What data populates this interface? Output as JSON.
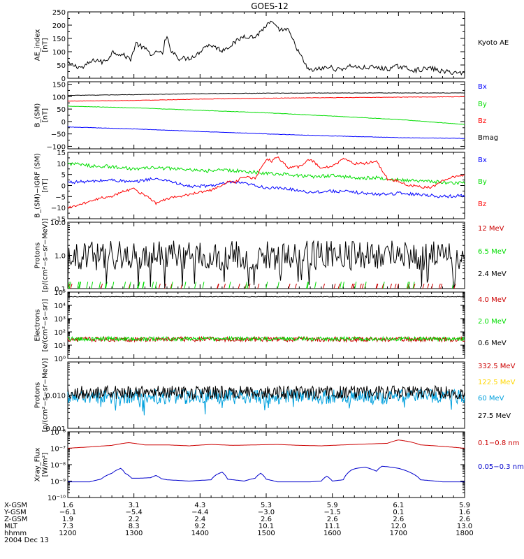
{
  "title": "GOES-12",
  "chart_data": [
    {
      "type": "line",
      "panel": "ae",
      "ylabel": "AE_index\n[nT]",
      "ylim": [
        0,
        250
      ],
      "yticks": [
        {
          "v": 0,
          "t": "0"
        },
        {
          "v": 50,
          "t": "50"
        },
        {
          "v": 100,
          "t": "100"
        },
        {
          "v": 150,
          "t": "150"
        },
        {
          "v": 200,
          "t": "200"
        },
        {
          "v": 250,
          "t": "250"
        }
      ],
      "series": [
        {
          "name": "Kyoto AE",
          "color": "#000000",
          "style": "noise",
          "noise": 9,
          "x": [
            0,
            8,
            14,
            20,
            26,
            31,
            36,
            41,
            50,
            57,
            62,
            70,
            78,
            82,
            86,
            88,
            90,
            94,
            101,
            110,
            118,
            124,
            130,
            140,
            150,
            160,
            170,
            180,
            185,
            190,
            200,
            210,
            214,
            219,
            228,
            238,
            245,
            252,
            258,
            265,
            275,
            290,
            300,
            315,
            330,
            340,
            352,
            360
          ],
          "y": [
            55,
            45,
            40,
            60,
            70,
            60,
            72,
            100,
            88,
            72,
            132,
            110,
            85,
            105,
            88,
            138,
            150,
            105,
            75,
            75,
            92,
            120,
            125,
            105,
            130,
            160,
            155,
            198,
            212,
            185,
            180,
            95,
            62,
            28,
            35,
            42,
            32,
            40,
            48,
            38,
            42,
            35,
            45,
            30,
            38,
            25,
            22,
            18
          ]
        }
      ]
    },
    {
      "type": "line",
      "panel": "b",
      "ylabel": "B_(SM)\n[nT]",
      "ylim": [
        -110,
        160
      ],
      "yticks": [
        {
          "v": -100,
          "t": "−100"
        },
        {
          "v": -50,
          "t": "−50"
        },
        {
          "v": 0,
          "t": "0"
        },
        {
          "v": 50,
          "t": "50"
        },
        {
          "v": 100,
          "t": "100"
        },
        {
          "v": 150,
          "t": "150"
        }
      ],
      "series": [
        {
          "name": "Bx",
          "color": "#0000ff",
          "style": "smooth",
          "noise": 0.8,
          "x": [
            0,
            60,
            120,
            180,
            240,
            300,
            360
          ],
          "y": [
            -22,
            -30,
            -40,
            -50,
            -58,
            -65,
            -68
          ]
        },
        {
          "name": "By",
          "color": "#00dd00",
          "style": "smooth",
          "noise": 0.8,
          "x": [
            0,
            60,
            120,
            180,
            240,
            300,
            360
          ],
          "y": [
            62,
            55,
            45,
            35,
            22,
            8,
            -12
          ]
        },
        {
          "name": "Bz",
          "color": "#ff0000",
          "style": "smooth",
          "noise": 0.8,
          "x": [
            0,
            60,
            120,
            180,
            240,
            300,
            360
          ],
          "y": [
            82,
            85,
            90,
            94,
            96,
            98,
            100
          ]
        },
        {
          "name": "Bmag",
          "color": "#000000",
          "style": "smooth",
          "noise": 0.8,
          "x": [
            0,
            60,
            120,
            180,
            240,
            300,
            360
          ],
          "y": [
            105,
            108,
            112,
            114,
            115,
            115,
            115
          ]
        }
      ],
      "legend_colors": [
        "#0000ff",
        "#00dd00",
        "#ff0000",
        "#000000"
      ]
    },
    {
      "type": "line",
      "panel": "db",
      "ylabel": "B_(SM)−IGRF (SM)\n[nT]",
      "ylim": [
        -15,
        15
      ],
      "yticks": [
        {
          "v": -15,
          "t": "−15"
        },
        {
          "v": -10,
          "t": "−10"
        },
        {
          "v": -5,
          "t": "−5"
        },
        {
          "v": 0,
          "t": "0"
        },
        {
          "v": 5,
          "t": "5"
        },
        {
          "v": 10,
          "t": "10"
        },
        {
          "v": 15,
          "t": "15"
        }
      ],
      "series": [
        {
          "name": "Bx",
          "color": "#0000ff",
          "style": "noise",
          "noise": 0.7,
          "x": [
            0,
            20,
            40,
            60,
            75,
            90,
            105,
            115,
            130,
            150,
            165,
            180,
            200,
            220,
            240,
            260,
            280,
            300,
            320,
            340,
            360
          ],
          "y": [
            1.5,
            1.8,
            2.5,
            1.5,
            3,
            2.5,
            0,
            -0.5,
            0,
            1.5,
            0.5,
            -1,
            -1.5,
            -3,
            -2.5,
            -3,
            -4,
            -3.5,
            -4,
            -5,
            -4.5
          ]
        },
        {
          "name": "By",
          "color": "#00dd00",
          "style": "noise",
          "noise": 0.8,
          "x": [
            0,
            20,
            40,
            60,
            80,
            100,
            120,
            140,
            160,
            180,
            200,
            220,
            240,
            260,
            280,
            300,
            320,
            340,
            360
          ],
          "y": [
            10,
            9,
            8.5,
            7.5,
            8,
            7.5,
            6.5,
            7,
            6.5,
            5.5,
            5,
            4,
            4.5,
            3.5,
            3.5,
            2.5,
            2,
            1.5,
            1
          ]
        },
        {
          "name": "Bz",
          "color": "#ff0000",
          "style": "noise",
          "noise": 0.6,
          "x": [
            0,
            10,
            20,
            30,
            40,
            50,
            60,
            70,
            80,
            90,
            100,
            110,
            120,
            130,
            140,
            145,
            150,
            160,
            170,
            175,
            180,
            185,
            190,
            200,
            210,
            220,
            230,
            240,
            250,
            260,
            270,
            280,
            285,
            290,
            300,
            310,
            320,
            330,
            340,
            350,
            360
          ],
          "y": [
            -10,
            -9,
            -7,
            -5.5,
            -5,
            -2.5,
            -1.5,
            -4.5,
            -8,
            -6,
            -5,
            -4,
            -3,
            -2,
            0,
            2,
            1,
            4,
            3,
            8,
            12,
            11,
            13,
            8,
            8.5,
            12,
            8,
            8.5,
            12,
            10,
            10,
            11,
            7,
            3,
            2,
            0,
            -0.5,
            -1,
            2,
            4,
            5
          ]
        }
      ],
      "legend_colors": [
        "#0000ff",
        "#00dd00",
        "#ff0000"
      ]
    },
    {
      "type": "line",
      "panel": "protons_low",
      "ylabel": "Protons\n[p/(cm²−s−sr−MeV)]",
      "log": true,
      "ylim": [
        0.1,
        10
      ],
      "yticks": [
        {
          "v": 0.1,
          "t": "0.1"
        },
        {
          "v": 1,
          "t": "1.0"
        },
        {
          "v": 10,
          "t": "10.0"
        }
      ],
      "series": [
        {
          "name": "12 MeV",
          "color": "#cc0000",
          "style": "sparse",
          "level": 0.1,
          "top": 0.14
        },
        {
          "name": "6.5 MeV",
          "color": "#00dd00",
          "style": "sparse",
          "level": 0.1,
          "top": 0.16
        },
        {
          "name": "2.4 MeV",
          "color": "#000000",
          "style": "spiky",
          "center": 1.0,
          "spread": 0.45,
          "dips": true
        }
      ],
      "legend_colors": [
        "#cc0000",
        "#00dd00",
        "#000000"
      ]
    },
    {
      "type": "line",
      "panel": "electrons",
      "ylabel": "Electrons\n[e/(cm²−s−sr)]",
      "log": true,
      "ylim": [
        1,
        100000
      ],
      "yticks": [
        {
          "v": 1,
          "t": "10⁰"
        },
        {
          "v": 10,
          "t": "10¹"
        },
        {
          "v": 100,
          "t": "10²"
        },
        {
          "v": 1000,
          "t": "10³"
        },
        {
          "v": 10000,
          "t": "10⁴"
        },
        {
          "v": 100000,
          "t": "10⁵"
        }
      ],
      "series": [
        {
          "name": "4.0 MeV",
          "color": "#cc0000",
          "style": "logjitter",
          "center": 28,
          "spread": 0.18
        },
        {
          "name": "2.0 MeV",
          "color": "#00dd00",
          "style": "logjitter",
          "center": 30,
          "spread": 0.15
        },
        {
          "name": "0.6 MeV",
          "color": "#000000",
          "style": "logjitter",
          "center": 45000,
          "spread": 0.02
        }
      ],
      "legend_colors": [
        "#cc0000",
        "#00dd00",
        "#000000"
      ]
    },
    {
      "type": "line",
      "panel": "protons_high",
      "ylabel": "Protons\n[p/(cm²−s−sr−MeV)]",
      "log": true,
      "ylim": [
        0.001,
        0.1
      ],
      "yticks": [
        {
          "v": 0.001,
          "t": "0.001"
        },
        {
          "v": 0.01,
          "t": "0.010"
        }
      ],
      "series": [
        {
          "name": "332.5 MeV",
          "color": "#cc0000",
          "style": "none"
        },
        {
          "name": "122.5 MeV",
          "color": "#ffd700",
          "style": "none"
        },
        {
          "name": "60 MeV",
          "color": "#00a0dd",
          "style": "logjitter",
          "center": 0.009,
          "spread": 0.22,
          "dips": true
        },
        {
          "name": "27.5 MeV",
          "color": "#000000",
          "style": "logjitter",
          "center": 0.012,
          "spread": 0.2
        }
      ],
      "legend_colors": [
        "#cc0000",
        "#ffd700",
        "#00a0dd",
        "#000000"
      ]
    },
    {
      "type": "line",
      "panel": "xray",
      "ylabel": "Xray_Flux\n[W/m²]",
      "log": true,
      "ylim": [
        1e-10,
        1e-06
      ],
      "yticks": [
        {
          "v": 1e-10,
          "t": "10⁻¹⁰"
        },
        {
          "v": 1e-09,
          "t": "10⁻⁹"
        },
        {
          "v": 1e-08,
          "t": "10⁻⁸"
        },
        {
          "v": 1e-07,
          "t": "10⁻⁷"
        },
        {
          "v": 1e-06,
          "t": "10⁻⁶"
        }
      ],
      "series": [
        {
          "name": "0.1−0.8 nm",
          "color": "#cc0000",
          "style": "smooth",
          "noise": 0,
          "x": [
            0,
            20,
            40,
            55,
            70,
            90,
            110,
            130,
            150,
            170,
            190,
            210,
            230,
            250,
            270,
            290,
            300,
            310,
            320,
            340,
            360
          ],
          "y": [
            1e-07,
            1.2e-07,
            1.5e-07,
            2.2e-07,
            1.6e-07,
            1.6e-07,
            1.4e-07,
            1.7e-07,
            1.5e-07,
            1.6e-07,
            1.7e-07,
            1.5e-07,
            1.4e-07,
            1.6e-07,
            1.8e-07,
            2e-07,
            3.2e-07,
            2.5e-07,
            1.6e-07,
            1.3e-07,
            1e-07
          ]
        },
        {
          "name": "0.05−0.3 nm",
          "color": "#0000cc",
          "style": "smooth",
          "noise": 0,
          "x": [
            0,
            20,
            30,
            40,
            48,
            52,
            58,
            65,
            75,
            80,
            85,
            90,
            110,
            130,
            135,
            140,
            145,
            160,
            170,
            175,
            180,
            190,
            200,
            220,
            230,
            235,
            240,
            250,
            258,
            262,
            270,
            280,
            285,
            290,
            300,
            310,
            320,
            340,
            360
          ],
          "y": [
            9e-10,
            9e-10,
            1.3e-09,
            3e-09,
            6e-09,
            3e-09,
            1.5e-09,
            1.5e-09,
            1.6e-09,
            2.2e-09,
            1.4e-09,
            1.2e-09,
            1e-09,
            1.2e-09,
            2.5e-09,
            3.5e-09,
            1.3e-09,
            1e-09,
            1.5e-09,
            3e-09,
            1.3e-09,
            9e-10,
            9e-10,
            9e-10,
            1e-09,
            2e-09,
            1e-09,
            1.2e-09,
            5e-09,
            6e-09,
            7e-09,
            4e-09,
            8e-09,
            7.5e-09,
            6e-09,
            3.5e-09,
            1.2e-09,
            9e-10,
            9e-10
          ]
        }
      ],
      "legend_colors": [
        "#cc0000",
        "#0000cc"
      ]
    }
  ],
  "xaxis": {
    "range": [
      0,
      360
    ],
    "ticks": [
      0,
      60,
      120,
      180,
      240,
      300,
      360
    ],
    "rows": [
      {
        "label": "X-GSM",
        "values": [
          "1.6",
          "3.1",
          "4.3",
          "5.3",
          "5.9",
          "6.1",
          "5.9"
        ]
      },
      {
        "label": "Y-GSM",
        "values": [
          "−6.1",
          "−5.4",
          "−4.4",
          "−3.0",
          "−1.5",
          "0.1",
          "1.6"
        ]
      },
      {
        "label": "Z-GSM",
        "values": [
          "1.9",
          "2.2",
          "2.4",
          "2.6",
          "2.6",
          "2.6",
          "2.6"
        ]
      },
      {
        "label": "MLT",
        "values": [
          "7.3",
          "8.3",
          "9.2",
          "10.1",
          "11.1",
          "12.0",
          "13.0"
        ]
      },
      {
        "label": "hhmm",
        "values": [
          "1200",
          "1300",
          "1400",
          "1500",
          "1600",
          "1700",
          "1800"
        ]
      }
    ],
    "date": "2004 Dec 13"
  }
}
